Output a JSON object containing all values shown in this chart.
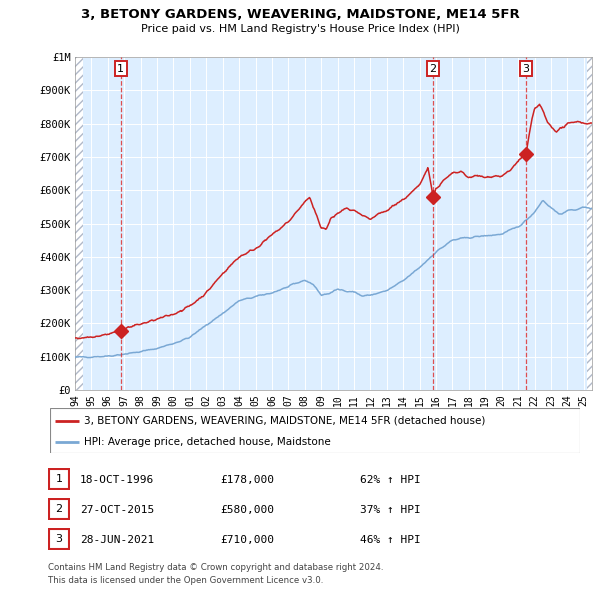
{
  "title": "3, BETONY GARDENS, WEAVERING, MAIDSTONE, ME14 5FR",
  "subtitle": "Price paid vs. HM Land Registry's House Price Index (HPI)",
  "legend_line1": "3, BETONY GARDENS, WEAVERING, MAIDSTONE, ME14 5FR (detached house)",
  "legend_line2": "HPI: Average price, detached house, Maidstone",
  "transactions": [
    {
      "num": 1,
      "date": "18-OCT-1996",
      "date_val": 1996.79,
      "price": 178000,
      "pct": "62% ↑ HPI"
    },
    {
      "num": 2,
      "date": "27-OCT-2015",
      "date_val": 2015.82,
      "price": 580000,
      "pct": "37% ↑ HPI"
    },
    {
      "num": 3,
      "date": "28-JUN-2021",
      "date_val": 2021.49,
      "price": 710000,
      "pct": "46% ↑ HPI"
    }
  ],
  "ylabel_ticks": [
    "£0",
    "£100K",
    "£200K",
    "£300K",
    "£400K",
    "£500K",
    "£600K",
    "£700K",
    "£800K",
    "£900K",
    "£1M"
  ],
  "ytick_vals": [
    0,
    100000,
    200000,
    300000,
    400000,
    500000,
    600000,
    700000,
    800000,
    900000,
    1000000
  ],
  "xmin": 1994.0,
  "xmax": 2025.5,
  "ymin": 0,
  "ymax": 1000000,
  "hpi_color": "#7aa8d4",
  "price_color": "#cc2222",
  "bg_color": "#ddeeff",
  "grid_color": "#ffffff",
  "dashed_color": "#dd3333",
  "hatch_color": "#b0b8c8",
  "footer1": "Contains HM Land Registry data © Crown copyright and database right 2024.",
  "footer2": "This data is licensed under the Open Government Licence v3.0.",
  "hpi_waypoints_x": [
    1994.0,
    1995.0,
    1996.0,
    1997.0,
    1998.0,
    1999.0,
    2000.0,
    2001.0,
    2002.0,
    2003.0,
    2004.0,
    2005.0,
    2006.0,
    2007.0,
    2008.0,
    2008.5,
    2009.0,
    2009.5,
    2010.0,
    2011.0,
    2011.5,
    2012.0,
    2013.0,
    2014.0,
    2015.0,
    2016.0,
    2017.0,
    2018.0,
    2019.0,
    2020.0,
    2021.0,
    2021.5,
    2022.0,
    2022.5,
    2023.0,
    2023.5,
    2024.0,
    2025.0,
    2025.5
  ],
  "hpi_waypoints_y": [
    98000,
    100000,
    102000,
    108000,
    115000,
    125000,
    140000,
    158000,
    195000,
    230000,
    268000,
    280000,
    292000,
    310000,
    330000,
    318000,
    285000,
    290000,
    302000,
    295000,
    282000,
    285000,
    298000,
    328000,
    368000,
    415000,
    450000,
    458000,
    463000,
    468000,
    490000,
    510000,
    535000,
    570000,
    548000,
    528000,
    537000,
    548000,
    546000
  ],
  "idx_waypoints_x": [
    1994.0,
    1995.0,
    1996.0,
    1996.79,
    1997.0,
    1998.0,
    1999.0,
    2000.0,
    2001.0,
    2002.0,
    2003.0,
    2004.0,
    2005.0,
    2006.0,
    2007.0,
    2007.5,
    2008.0,
    2008.3,
    2008.5,
    2008.8,
    2009.0,
    2009.3,
    2009.6,
    2010.0,
    2010.5,
    2011.0,
    2011.5,
    2012.0,
    2012.5,
    2013.0,
    2013.5,
    2014.0,
    2014.5,
    2015.0,
    2015.3,
    2015.5,
    2015.82,
    2016.0,
    2016.5,
    2017.0,
    2017.5,
    2018.0,
    2018.5,
    2019.0,
    2019.5,
    2020.0,
    2020.5,
    2021.0,
    2021.49,
    2021.8,
    2022.0,
    2022.3,
    2022.5,
    2022.8,
    2023.0,
    2023.3,
    2023.5,
    2024.0,
    2024.5,
    2025.0,
    2025.5
  ],
  "idx_waypoints_y": [
    155000,
    160000,
    168000,
    178000,
    185000,
    198000,
    212000,
    228000,
    252000,
    292000,
    350000,
    400000,
    425000,
    465000,
    505000,
    535000,
    565000,
    578000,
    548000,
    515000,
    488000,
    482000,
    515000,
    530000,
    545000,
    538000,
    522000,
    512000,
    528000,
    538000,
    558000,
    572000,
    592000,
    615000,
    648000,
    672000,
    580000,
    605000,
    630000,
    650000,
    655000,
    638000,
    643000,
    638000,
    643000,
    642000,
    658000,
    688000,
    710000,
    802000,
    843000,
    858000,
    838000,
    802000,
    792000,
    778000,
    782000,
    797000,
    808000,
    802000,
    800000
  ]
}
